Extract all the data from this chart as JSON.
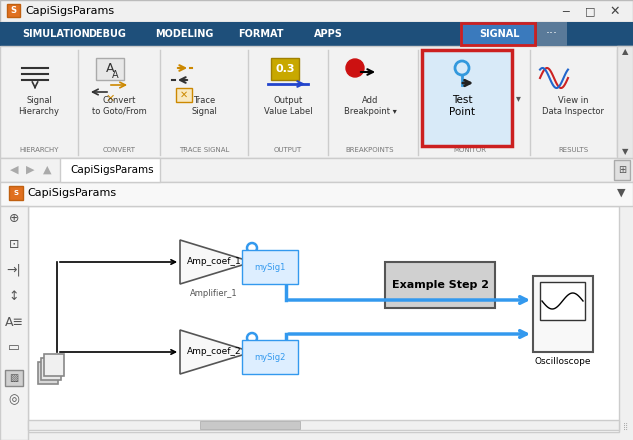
{
  "title_bar": "CapiSigsParams",
  "menu_items": [
    "SIMULATION",
    "DEBUG",
    "MODELING",
    "FORMAT",
    "APPS"
  ],
  "signal_tab": "SIGNAL",
  "model_name": "CapiSigsParams",
  "sel_color": "#4da6ff",
  "wire_color": "#000000",
  "menu_bg": "#1e4f7a",
  "signal_tab_bg": "#2b6cb0",
  "toolbar_bg": "#f0f0f0",
  "canvas_bg": "#ffffff",
  "title_bg": "#f0f0f0",
  "nav_bg": "#f0f0f0"
}
